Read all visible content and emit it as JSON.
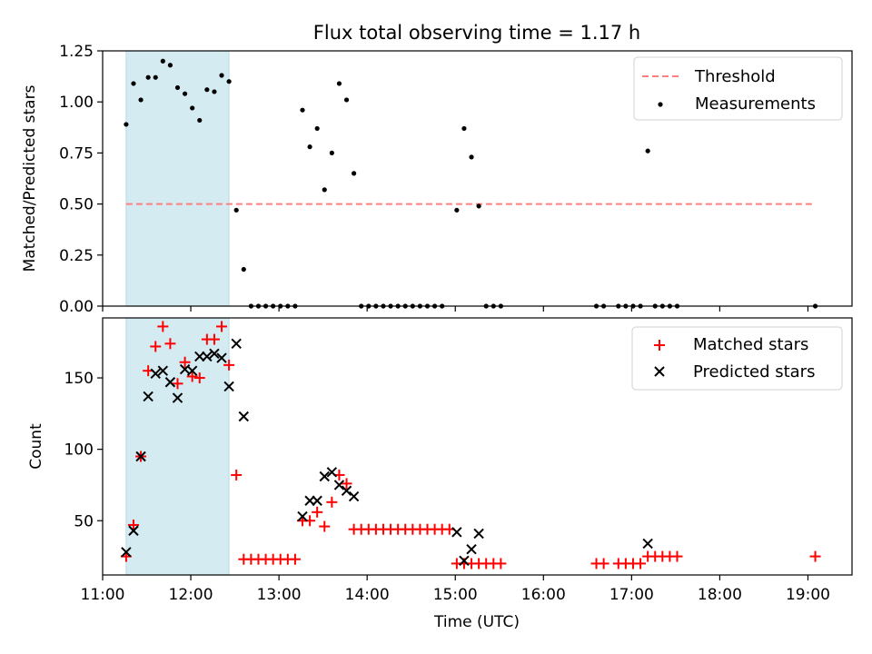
{
  "figure": {
    "title": "Flux total observing time = 1.17 h"
  },
  "chart_data": [
    {
      "type": "scatter",
      "panel": "top",
      "ylabel": "Matched/Predicted stars",
      "xlabel": "",
      "xlim": [
        "11:00",
        "19:30"
      ],
      "ylim": [
        0,
        1.25
      ],
      "yticks": [
        0.0,
        0.25,
        0.5,
        0.75,
        1.0,
        1.25
      ],
      "ytick_labels": [
        "0.00",
        "0.25",
        "0.50",
        "0.75",
        "1.00",
        "1.25"
      ],
      "xticks": [
        "11:00",
        "12:00",
        "13:00",
        "14:00",
        "15:00",
        "16:00",
        "17:00",
        "18:00",
        "19:00"
      ],
      "highlight_span": [
        "11:16",
        "12:26"
      ],
      "highlight_color": "#d4ebf2",
      "threshold": {
        "name": "Threshold",
        "value": 0.5,
        "x_range": [
          "11:16",
          "19:05"
        ],
        "color": "#ff7f7f",
        "style": "dashed"
      },
      "legend_position": "upper right",
      "series": [
        {
          "name": "Measurements",
          "marker": "dot",
          "color": "#000000",
          "points": [
            [
              "11:16",
              0.89
            ],
            [
              "11:21",
              1.09
            ],
            [
              "11:26",
              1.01
            ],
            [
              "11:31",
              1.12
            ],
            [
              "11:36",
              1.12
            ],
            [
              "11:41",
              1.2
            ],
            [
              "11:46",
              1.18
            ],
            [
              "11:51",
              1.07
            ],
            [
              "11:56",
              1.04
            ],
            [
              "12:01",
              0.97
            ],
            [
              "12:06",
              0.91
            ],
            [
              "12:11",
              1.06
            ],
            [
              "12:16",
              1.05
            ],
            [
              "12:21",
              1.13
            ],
            [
              "12:26",
              1.1
            ],
            [
              "12:31",
              0.47
            ],
            [
              "12:36",
              0.18
            ],
            [
              "12:41",
              0
            ],
            [
              "12:46",
              0
            ],
            [
              "12:51",
              0
            ],
            [
              "12:56",
              0
            ],
            [
              "13:01",
              0
            ],
            [
              "13:06",
              0
            ],
            [
              "13:11",
              0
            ],
            [
              "13:16",
              0.96
            ],
            [
              "13:21",
              0.78
            ],
            [
              "13:26",
              0.87
            ],
            [
              "13:31",
              0.57
            ],
            [
              "13:36",
              0.75
            ],
            [
              "13:41",
              1.09
            ],
            [
              "13:46",
              1.01
            ],
            [
              "13:51",
              0.65
            ],
            [
              "13:56",
              0
            ],
            [
              "14:01",
              0
            ],
            [
              "14:06",
              0
            ],
            [
              "14:11",
              0
            ],
            [
              "14:16",
              0
            ],
            [
              "14:21",
              0
            ],
            [
              "14:26",
              0
            ],
            [
              "14:31",
              0
            ],
            [
              "14:36",
              0
            ],
            [
              "14:41",
              0
            ],
            [
              "14:46",
              0
            ],
            [
              "14:51",
              0
            ],
            [
              "15:01",
              0.47
            ],
            [
              "15:06",
              0.87
            ],
            [
              "15:11",
              0.73
            ],
            [
              "15:16",
              0.49
            ],
            [
              "15:21",
              0
            ],
            [
              "15:26",
              0
            ],
            [
              "15:31",
              0
            ],
            [
              "16:36",
              0
            ],
            [
              "16:41",
              0
            ],
            [
              "16:51",
              0
            ],
            [
              "16:56",
              0
            ],
            [
              "17:01",
              0
            ],
            [
              "17:06",
              0
            ],
            [
              "17:11",
              0.76
            ],
            [
              "17:16",
              0
            ],
            [
              "17:21",
              0
            ],
            [
              "17:26",
              0
            ],
            [
              "17:31",
              0
            ],
            [
              "19:05",
              0
            ]
          ]
        }
      ]
    },
    {
      "type": "scatter",
      "panel": "bottom",
      "ylabel": "Count",
      "xlabel": "Time (UTC)",
      "xlim": [
        "11:00",
        "19:30"
      ],
      "ylim": [
        12,
        192
      ],
      "yticks": [
        50,
        100,
        150
      ],
      "ytick_labels": [
        "50",
        "100",
        "150"
      ],
      "xticks": [
        "11:00",
        "12:00",
        "13:00",
        "14:00",
        "15:00",
        "16:00",
        "17:00",
        "18:00",
        "19:00"
      ],
      "xtick_labels": [
        "11:00",
        "12:00",
        "13:00",
        "14:00",
        "15:00",
        "16:00",
        "17:00",
        "18:00",
        "19:00"
      ],
      "highlight_span": [
        "11:16",
        "12:26"
      ],
      "highlight_color": "#d4ebf2",
      "legend_position": "upper right",
      "series": [
        {
          "name": "Matched stars",
          "marker": "plus",
          "color": "#ff0000",
          "points": [
            [
              "11:16",
              25
            ],
            [
              "11:21",
              47
            ],
            [
              "11:26",
              95
            ],
            [
              "11:31",
              155
            ],
            [
              "11:36",
              172
            ],
            [
              "11:41",
              186
            ],
            [
              "11:46",
              174
            ],
            [
              "11:51",
              146
            ],
            [
              "11:56",
              161
            ],
            [
              "12:01",
              151
            ],
            [
              "12:06",
              150
            ],
            [
              "12:11",
              177
            ],
            [
              "12:16",
              177
            ],
            [
              "12:21",
              186
            ],
            [
              "12:26",
              159
            ],
            [
              "12:31",
              82
            ],
            [
              "12:36",
              23
            ],
            [
              "12:41",
              23
            ],
            [
              "12:46",
              23
            ],
            [
              "12:51",
              23
            ],
            [
              "12:56",
              23
            ],
            [
              "13:01",
              23
            ],
            [
              "13:06",
              23
            ],
            [
              "13:11",
              23
            ],
            [
              "13:16",
              50
            ],
            [
              "13:21",
              50
            ],
            [
              "13:26",
              56
            ],
            [
              "13:31",
              46
            ],
            [
              "13:36",
              63
            ],
            [
              "13:41",
              82
            ],
            [
              "13:46",
              76
            ],
            [
              "13:51",
              44
            ],
            [
              "13:56",
              44
            ],
            [
              "14:01",
              44
            ],
            [
              "14:06",
              44
            ],
            [
              "14:11",
              44
            ],
            [
              "14:16",
              44
            ],
            [
              "14:21",
              44
            ],
            [
              "14:26",
              44
            ],
            [
              "14:31",
              44
            ],
            [
              "14:36",
              44
            ],
            [
              "14:41",
              44
            ],
            [
              "14:46",
              44
            ],
            [
              "14:51",
              44
            ],
            [
              "14:56",
              44
            ],
            [
              "15:01",
              20
            ],
            [
              "15:06",
              20
            ],
            [
              "15:11",
              20
            ],
            [
              "15:16",
              20
            ],
            [
              "15:21",
              20
            ],
            [
              "15:26",
              20
            ],
            [
              "15:31",
              20
            ],
            [
              "16:36",
              20
            ],
            [
              "16:41",
              20
            ],
            [
              "16:51",
              20
            ],
            [
              "16:56",
              20
            ],
            [
              "17:01",
              20
            ],
            [
              "17:06",
              20
            ],
            [
              "17:11",
              25
            ],
            [
              "17:16",
              25
            ],
            [
              "17:21",
              25
            ],
            [
              "17:26",
              25
            ],
            [
              "17:31",
              25
            ],
            [
              "19:05",
              25
            ]
          ]
        },
        {
          "name": "Predicted stars",
          "marker": "x",
          "color": "#000000",
          "points": [
            [
              "11:16",
              28
            ],
            [
              "11:21",
              43
            ],
            [
              "11:26",
              95
            ],
            [
              "11:31",
              137
            ],
            [
              "11:36",
              153
            ],
            [
              "11:41",
              155
            ],
            [
              "11:46",
              147
            ],
            [
              "11:51",
              136
            ],
            [
              "11:56",
              156
            ],
            [
              "12:01",
              155
            ],
            [
              "12:06",
              165
            ],
            [
              "12:11",
              165
            ],
            [
              "12:16",
              167
            ],
            [
              "12:21",
              164
            ],
            [
              "12:26",
              144
            ],
            [
              "12:31",
              174
            ],
            [
              "12:36",
              123
            ],
            [
              "13:16",
              53
            ],
            [
              "13:21",
              64
            ],
            [
              "13:26",
              64
            ],
            [
              "13:31",
              81
            ],
            [
              "13:36",
              84
            ],
            [
              "13:41",
              75
            ],
            [
              "13:46",
              71
            ],
            [
              "13:51",
              67
            ],
            [
              "15:01",
              42
            ],
            [
              "15:06",
              22
            ],
            [
              "15:11",
              30
            ],
            [
              "15:16",
              41
            ],
            [
              "17:11",
              34
            ]
          ]
        }
      ]
    }
  ]
}
